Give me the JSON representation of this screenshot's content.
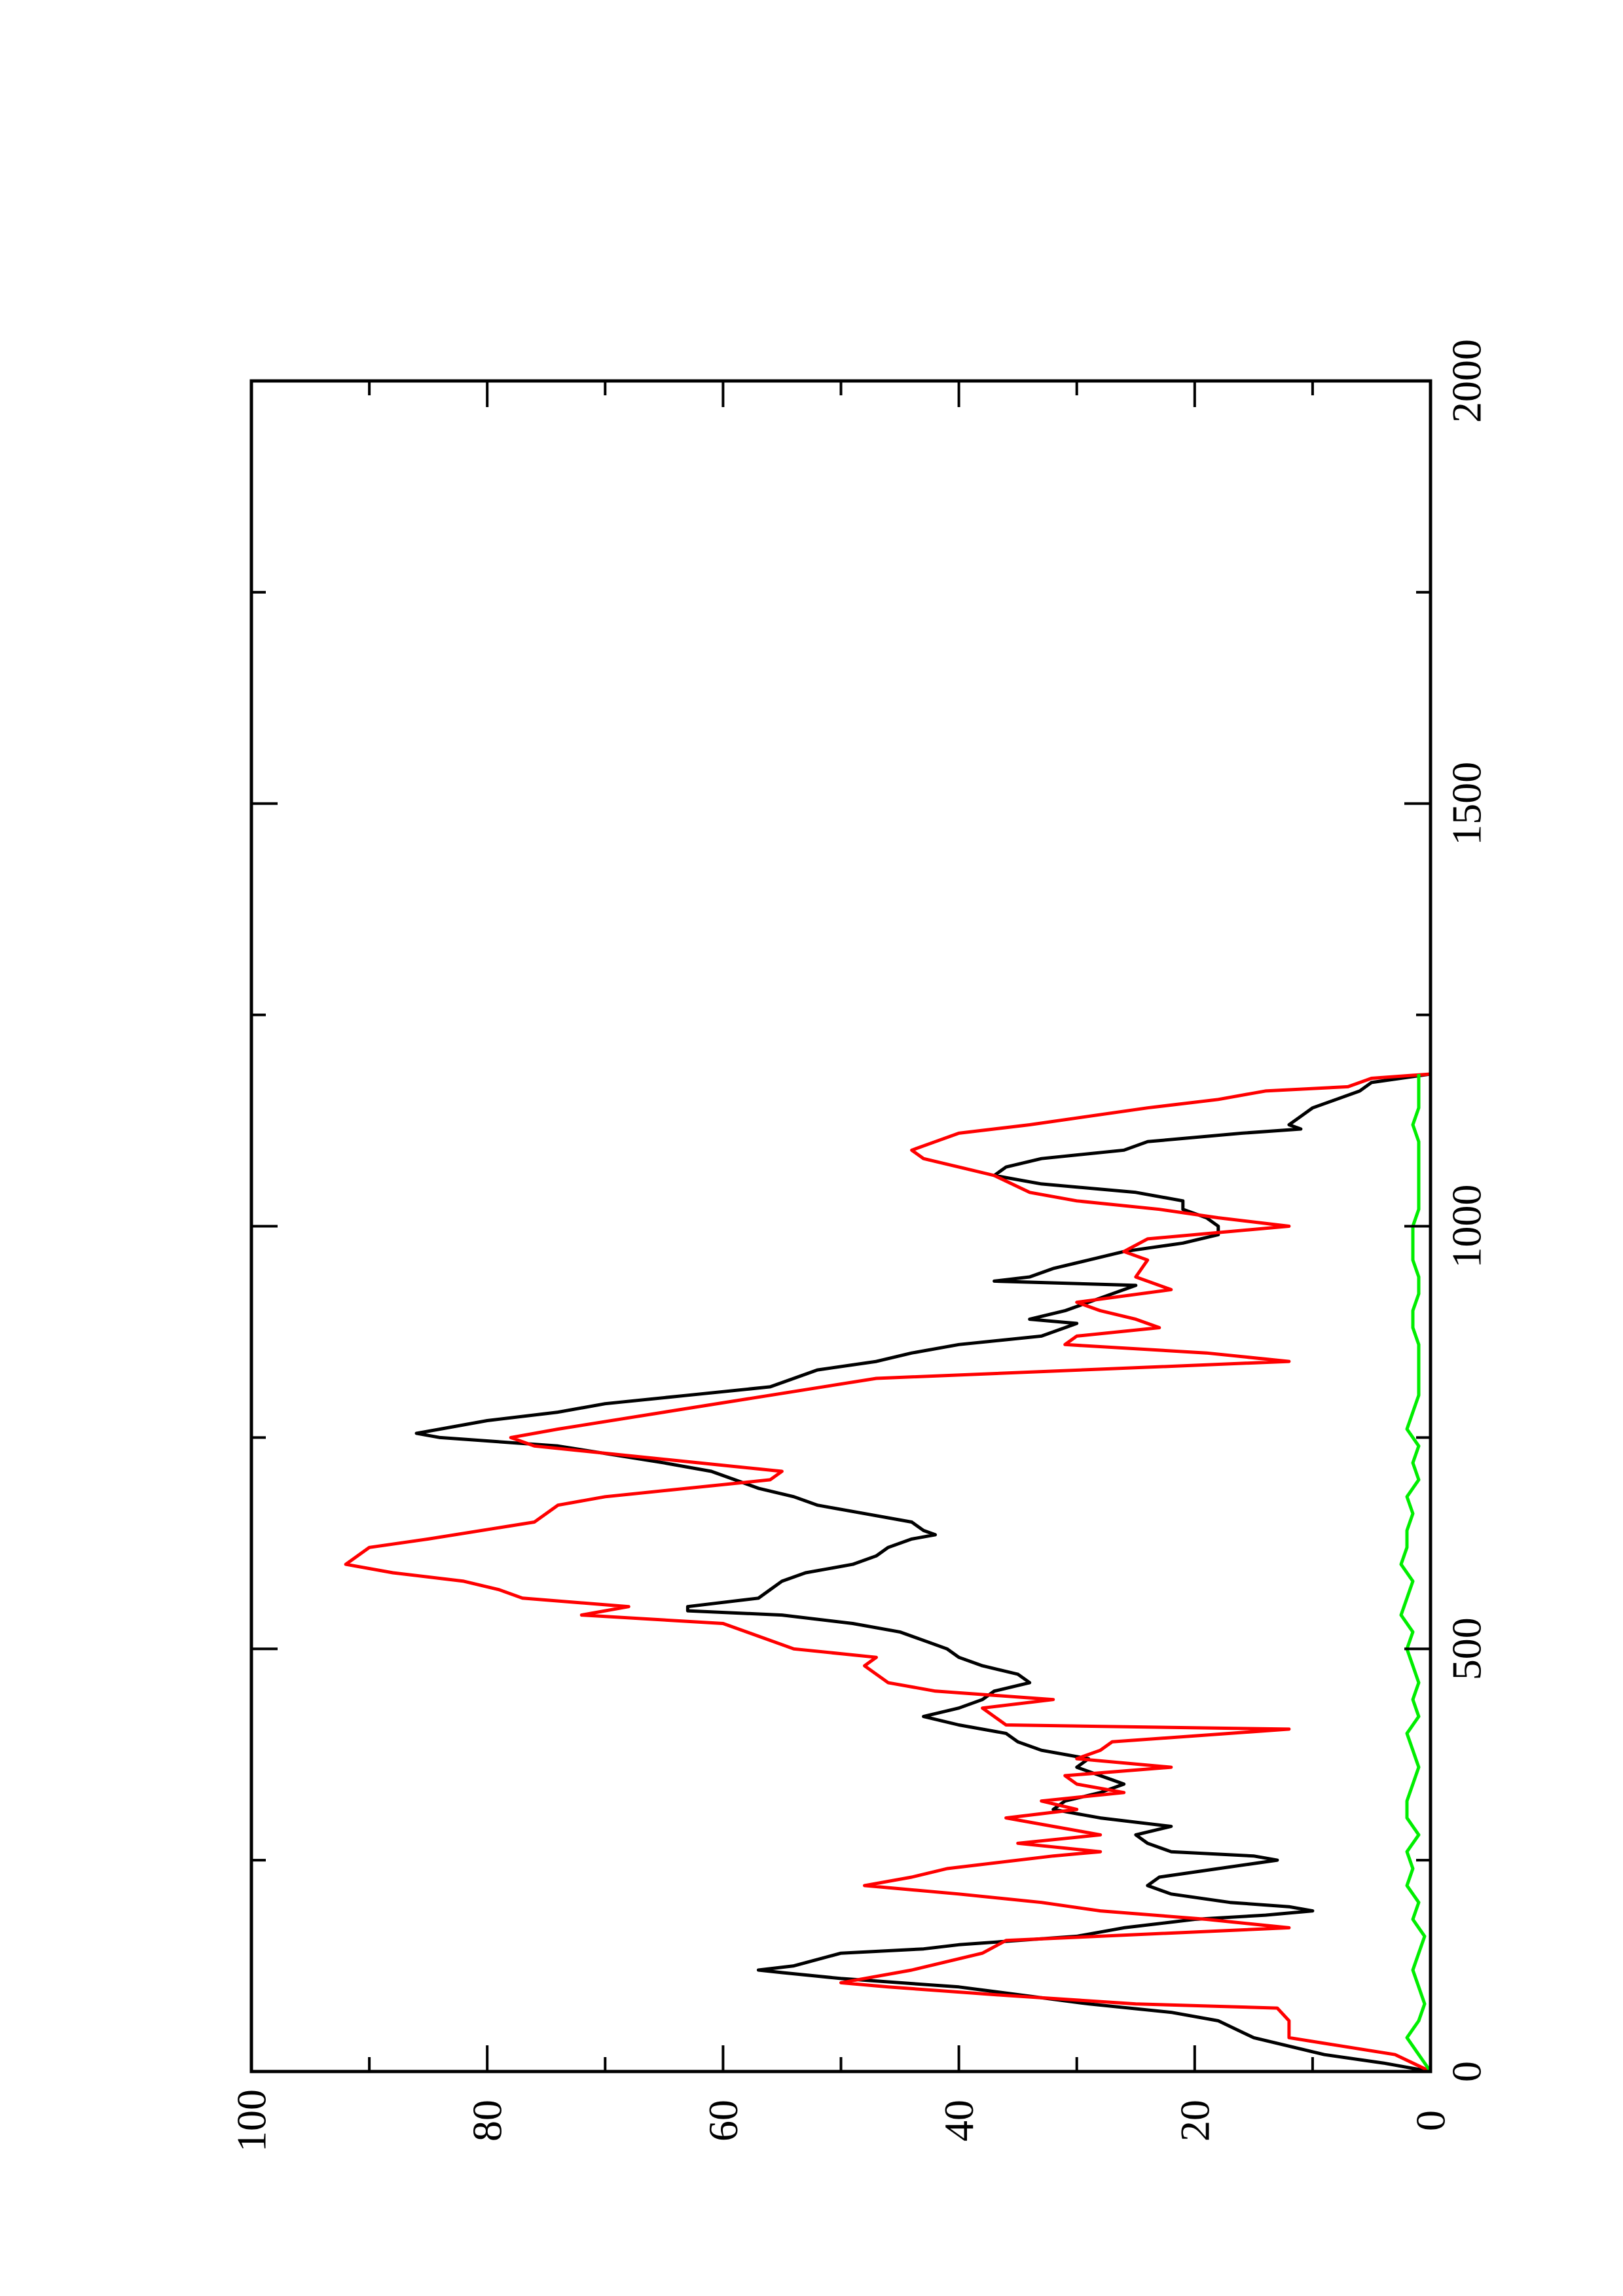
{
  "chart_data": {
    "type": "line",
    "title": "",
    "xlabel": "",
    "ylabel": "",
    "orientation": "rotated-90-ccw",
    "xlim": [
      0,
      2000
    ],
    "ylim": [
      0,
      100
    ],
    "x_ticks": [
      "0",
      "500",
      "1000",
      "1500",
      "2000"
    ],
    "y_ticks": [
      "0",
      "20",
      "40",
      "60",
      "80",
      "100"
    ],
    "grid": false,
    "legend": "none",
    "series": [
      {
        "color": "#000000",
        "points": [
          [
            0,
            0
          ],
          [
            10,
            4
          ],
          [
            20,
            9
          ],
          [
            40,
            15
          ],
          [
            60,
            18
          ],
          [
            70,
            22
          ],
          [
            80,
            29
          ],
          [
            100,
            40
          ],
          [
            110,
            50
          ],
          [
            117,
            55
          ],
          [
            120,
            57
          ],
          [
            125,
            54
          ],
          [
            140,
            50
          ],
          [
            145,
            43
          ],
          [
            150,
            40
          ],
          [
            160,
            30
          ],
          [
            170,
            26
          ],
          [
            180,
            20
          ],
          [
            185,
            14
          ],
          [
            190,
            10
          ],
          [
            195,
            12
          ],
          [
            200,
            17
          ],
          [
            210,
            22
          ],
          [
            220,
            24
          ],
          [
            230,
            23
          ],
          [
            240,
            18
          ],
          [
            250,
            13
          ],
          [
            255,
            15
          ],
          [
            260,
            22
          ],
          [
            270,
            24
          ],
          [
            280,
            25
          ],
          [
            290,
            22
          ],
          [
            300,
            28
          ],
          [
            310,
            32
          ],
          [
            320,
            31
          ],
          [
            330,
            28
          ],
          [
            340,
            26
          ],
          [
            345,
            27
          ],
          [
            350,
            28
          ],
          [
            360,
            30
          ],
          [
            370,
            29
          ],
          [
            380,
            33
          ],
          [
            390,
            35
          ],
          [
            400,
            36
          ],
          [
            410,
            40
          ],
          [
            420,
            43
          ],
          [
            430,
            40
          ],
          [
            440,
            38
          ],
          [
            450,
            37
          ],
          [
            460,
            34
          ],
          [
            470,
            35
          ],
          [
            480,
            38
          ],
          [
            490,
            40
          ],
          [
            500,
            41
          ],
          [
            510,
            43
          ],
          [
            520,
            45
          ],
          [
            530,
            49
          ],
          [
            540,
            55
          ],
          [
            545,
            63
          ],
          [
            550,
            63
          ],
          [
            560,
            57
          ],
          [
            570,
            56
          ],
          [
            580,
            55
          ],
          [
            590,
            53
          ],
          [
            600,
            49
          ],
          [
            610,
            47
          ],
          [
            620,
            46
          ],
          [
            630,
            44
          ],
          [
            635,
            42
          ],
          [
            640,
            43
          ],
          [
            650,
            44
          ],
          [
            660,
            48
          ],
          [
            670,
            52
          ],
          [
            680,
            54
          ],
          [
            690,
            57
          ],
          [
            700,
            59
          ],
          [
            710,
            61
          ],
          [
            720,
            65
          ],
          [
            740,
            74
          ],
          [
            750,
            84
          ],
          [
            755,
            86
          ],
          [
            760,
            84
          ],
          [
            770,
            80
          ],
          [
            780,
            74
          ],
          [
            790,
            70
          ],
          [
            800,
            63
          ],
          [
            810,
            56
          ],
          [
            820,
            54
          ],
          [
            830,
            52
          ],
          [
            840,
            47
          ],
          [
            850,
            44
          ],
          [
            860,
            40
          ],
          [
            870,
            33
          ],
          [
            880,
            31
          ],
          [
            885,
            30
          ],
          [
            890,
            34
          ],
          [
            900,
            31
          ],
          [
            910,
            29
          ],
          [
            920,
            27
          ],
          [
            930,
            25
          ],
          [
            935,
            37
          ],
          [
            940,
            34
          ],
          [
            950,
            32
          ],
          [
            960,
            29
          ],
          [
            970,
            26
          ],
          [
            980,
            21
          ],
          [
            990,
            18
          ],
          [
            1000,
            18
          ],
          [
            1010,
            19
          ],
          [
            1020,
            21
          ],
          [
            1030,
            21
          ],
          [
            1040,
            25
          ],
          [
            1050,
            33
          ],
          [
            1060,
            37
          ],
          [
            1070,
            36
          ],
          [
            1080,
            33
          ],
          [
            1090,
            26
          ],
          [
            1100,
            24
          ],
          [
            1110,
            16
          ],
          [
            1115,
            11
          ],
          [
            1120,
            12
          ],
          [
            1130,
            11
          ],
          [
            1140,
            10
          ],
          [
            1150,
            8
          ],
          [
            1160,
            6
          ],
          [
            1170,
            5
          ],
          [
            1180,
            0
          ]
        ]
      },
      {
        "color": "#ff0000",
        "points": [
          [
            0,
            0
          ],
          [
            20,
            3
          ],
          [
            40,
            12
          ],
          [
            60,
            12
          ],
          [
            75,
            13
          ],
          [
            80,
            25
          ],
          [
            90,
            36
          ],
          [
            100,
            46
          ],
          [
            105,
            50
          ],
          [
            110,
            48
          ],
          [
            120,
            44
          ],
          [
            130,
            41
          ],
          [
            140,
            38
          ],
          [
            155,
            36
          ],
          [
            170,
            12
          ],
          [
            180,
            19
          ],
          [
            190,
            28
          ],
          [
            200,
            33
          ],
          [
            210,
            40
          ],
          [
            220,
            48
          ],
          [
            230,
            44
          ],
          [
            240,
            41
          ],
          [
            255,
            32
          ],
          [
            260,
            28
          ],
          [
            270,
            35
          ],
          [
            280,
            28
          ],
          [
            290,
            32
          ],
          [
            300,
            36
          ],
          [
            310,
            30
          ],
          [
            320,
            33
          ],
          [
            330,
            26
          ],
          [
            340,
            30
          ],
          [
            350,
            31
          ],
          [
            360,
            22
          ],
          [
            370,
            30
          ],
          [
            380,
            28
          ],
          [
            390,
            27
          ],
          [
            405,
            12
          ],
          [
            410,
            36
          ],
          [
            420,
            37
          ],
          [
            430,
            38
          ],
          [
            440,
            32
          ],
          [
            450,
            42
          ],
          [
            460,
            46
          ],
          [
            480,
            48
          ],
          [
            490,
            47
          ],
          [
            500,
            54
          ],
          [
            520,
            58
          ],
          [
            530,
            60
          ],
          [
            540,
            72
          ],
          [
            550,
            68
          ],
          [
            560,
            77
          ],
          [
            570,
            79
          ],
          [
            580,
            82
          ],
          [
            590,
            88
          ],
          [
            600,
            92
          ],
          [
            620,
            90
          ],
          [
            630,
            85
          ],
          [
            650,
            76
          ],
          [
            670,
            74
          ],
          [
            680,
            70
          ],
          [
            700,
            56
          ],
          [
            710,
            55
          ],
          [
            720,
            62
          ],
          [
            740,
            76
          ],
          [
            750,
            78
          ],
          [
            760,
            74
          ],
          [
            780,
            65
          ],
          [
            800,
            56
          ],
          [
            820,
            47
          ],
          [
            840,
            12
          ],
          [
            850,
            19
          ],
          [
            860,
            31
          ],
          [
            870,
            30
          ],
          [
            880,
            23
          ],
          [
            890,
            25
          ],
          [
            900,
            28
          ],
          [
            910,
            30
          ],
          [
            925,
            22
          ],
          [
            940,
            25
          ],
          [
            960,
            24
          ],
          [
            970,
            26
          ],
          [
            985,
            24
          ],
          [
            1000,
            12
          ],
          [
            1010,
            18
          ],
          [
            1020,
            23
          ],
          [
            1030,
            30
          ],
          [
            1040,
            34
          ],
          [
            1060,
            37
          ],
          [
            1070,
            40
          ],
          [
            1080,
            43
          ],
          [
            1090,
            44
          ],
          [
            1100,
            42
          ],
          [
            1110,
            40
          ],
          [
            1120,
            34
          ],
          [
            1140,
            24
          ],
          [
            1150,
            18
          ],
          [
            1160,
            14
          ],
          [
            1165,
            7
          ],
          [
            1175,
            5
          ],
          [
            1180,
            0
          ]
        ]
      },
      {
        "color": "#00ee00",
        "points": [
          [
            0,
            0
          ],
          [
            20,
            1
          ],
          [
            40,
            2
          ],
          [
            60,
            1
          ],
          [
            80,
            0.5
          ],
          [
            100,
            1
          ],
          [
            120,
            1.5
          ],
          [
            140,
            1
          ],
          [
            160,
            0.5
          ],
          [
            180,
            1.5
          ],
          [
            200,
            1
          ],
          [
            220,
            2
          ],
          [
            240,
            1.5
          ],
          [
            260,
            2
          ],
          [
            280,
            1
          ],
          [
            300,
            2
          ],
          [
            320,
            2
          ],
          [
            340,
            1.5
          ],
          [
            360,
            1
          ],
          [
            380,
            1.5
          ],
          [
            400,
            2
          ],
          [
            420,
            1
          ],
          [
            440,
            1.5
          ],
          [
            460,
            1
          ],
          [
            480,
            1.5
          ],
          [
            500,
            2
          ],
          [
            520,
            1.5
          ],
          [
            540,
            2.5
          ],
          [
            560,
            2
          ],
          [
            580,
            1.5
          ],
          [
            600,
            2.5
          ],
          [
            620,
            2
          ],
          [
            640,
            2
          ],
          [
            660,
            1.5
          ],
          [
            680,
            2
          ],
          [
            700,
            1
          ],
          [
            720,
            1.5
          ],
          [
            740,
            1
          ],
          [
            760,
            2
          ],
          [
            780,
            1.5
          ],
          [
            800,
            1
          ],
          [
            820,
            1
          ],
          [
            840,
            1
          ],
          [
            860,
            1
          ],
          [
            880,
            1.5
          ],
          [
            900,
            1.5
          ],
          [
            920,
            1
          ],
          [
            940,
            1
          ],
          [
            960,
            1.5
          ],
          [
            980,
            1.5
          ],
          [
            1000,
            1.5
          ],
          [
            1020,
            1
          ],
          [
            1040,
            1
          ],
          [
            1060,
            1
          ],
          [
            1080,
            1
          ],
          [
            1100,
            1
          ],
          [
            1120,
            1.5
          ],
          [
            1140,
            1
          ],
          [
            1160,
            1
          ],
          [
            1180,
            1
          ]
        ]
      }
    ]
  }
}
